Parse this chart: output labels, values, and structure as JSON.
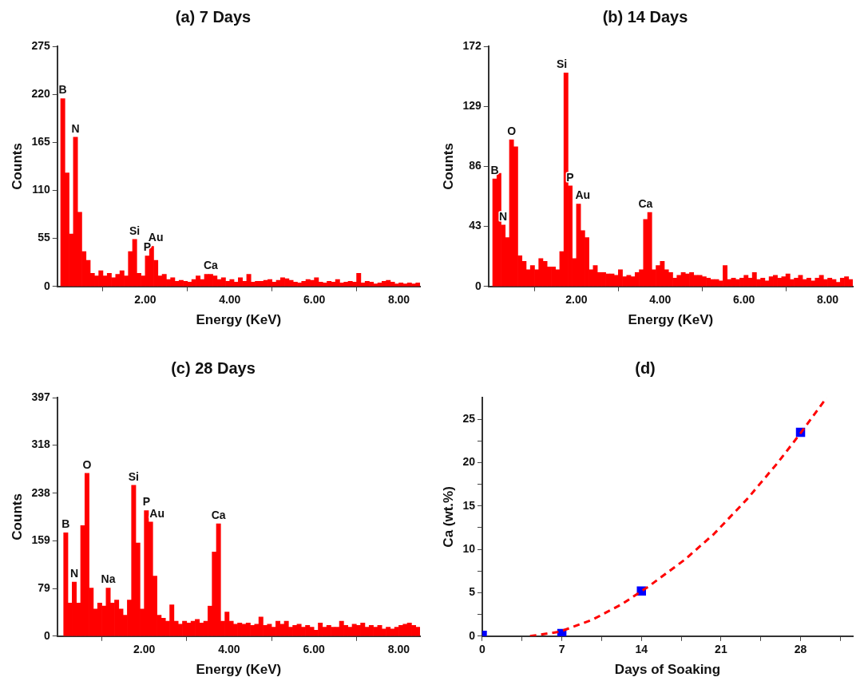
{
  "chart_data": [
    {
      "type": "bar",
      "title": "(a) 7 Days",
      "xlabel": "Energy (KeV)",
      "ylabel": "Counts",
      "color": "#ff0000",
      "grid": false,
      "legend": false,
      "x": [
        0.05,
        0.15,
        0.25,
        0.35,
        0.45,
        0.55,
        0.65,
        0.75,
        0.85,
        0.95,
        1.05,
        1.15,
        1.25,
        1.35,
        1.45,
        1.55,
        1.65,
        1.75,
        1.85,
        1.95,
        2.05,
        2.15,
        2.25,
        2.35,
        2.45,
        2.55,
        2.65,
        2.75,
        2.85,
        2.95,
        3.05,
        3.15,
        3.25,
        3.35,
        3.45,
        3.55,
        3.65,
        3.75,
        3.85,
        3.95,
        4.05,
        4.15,
        4.25,
        4.35,
        4.45,
        4.55,
        4.65,
        4.75,
        4.85,
        4.95,
        5.05,
        5.15,
        5.25,
        5.35,
        5.45,
        5.55,
        5.65,
        5.75,
        5.85,
        5.95,
        6.05,
        6.15,
        6.25,
        6.35,
        6.45,
        6.55,
        6.65,
        6.75,
        6.85,
        6.95,
        7.05,
        7.15,
        7.25,
        7.35,
        7.45,
        7.55,
        7.65,
        7.75,
        7.85,
        7.95,
        8.05,
        8.15,
        8.25,
        8.35,
        8.45
      ],
      "values": [
        215,
        130,
        60,
        171,
        85,
        40,
        30,
        15,
        12,
        18,
        12,
        15,
        10,
        14,
        18,
        12,
        40,
        54,
        15,
        12,
        35,
        46,
        30,
        12,
        14,
        8,
        10,
        6,
        7,
        6,
        5,
        8,
        12,
        8,
        14,
        14,
        12,
        8,
        10,
        6,
        8,
        5,
        10,
        6,
        14,
        5,
        6,
        6,
        7,
        8,
        5,
        7,
        10,
        9,
        7,
        5,
        4,
        6,
        8,
        7,
        10,
        5,
        4,
        6,
        5,
        8,
        4,
        5,
        6,
        5,
        15,
        4,
        6,
        5,
        3,
        4,
        6,
        7,
        5,
        3,
        4,
        3,
        4,
        3,
        4
      ],
      "xlim": [
        -0.08,
        8.5
      ],
      "xticks": [
        {
          "value": 2,
          "label": "2.00"
        },
        {
          "value": 4,
          "label": "4.00"
        },
        {
          "value": 6,
          "label": "6.00"
        },
        {
          "value": 8,
          "label": "8.00"
        }
      ],
      "ylim": [
        0,
        275
      ],
      "yticks": [
        0,
        55,
        110,
        165,
        220,
        275
      ],
      "annotations": [
        {
          "text": "B",
          "x": 0.05,
          "y": 215
        },
        {
          "text": "N",
          "x": 0.35,
          "y": 171
        },
        {
          "text": "Si",
          "x": 1.75,
          "y": 54
        },
        {
          "text": "P",
          "x": 2.05,
          "y": 35
        },
        {
          "text": "Au",
          "x": 2.25,
          "y": 46
        },
        {
          "text": "Ca",
          "x": 3.55,
          "y": 14
        }
      ]
    },
    {
      "type": "bar",
      "title": "(b) 14 Days",
      "xlabel": "Energy (KeV)",
      "ylabel": "Counts",
      "color": "#ff0000",
      "grid": false,
      "legend": false,
      "x": [
        0.05,
        0.15,
        0.25,
        0.35,
        0.45,
        0.55,
        0.65,
        0.75,
        0.85,
        0.95,
        1.05,
        1.15,
        1.25,
        1.35,
        1.45,
        1.55,
        1.65,
        1.75,
        1.85,
        1.95,
        2.05,
        2.15,
        2.25,
        2.35,
        2.45,
        2.55,
        2.65,
        2.75,
        2.85,
        2.95,
        3.05,
        3.15,
        3.25,
        3.35,
        3.45,
        3.55,
        3.65,
        3.75,
        3.85,
        3.95,
        4.05,
        4.15,
        4.25,
        4.35,
        4.45,
        4.55,
        4.65,
        4.75,
        4.85,
        4.95,
        5.05,
        5.15,
        5.25,
        5.35,
        5.45,
        5.55,
        5.65,
        5.75,
        5.85,
        5.95,
        6.05,
        6.15,
        6.25,
        6.35,
        6.45,
        6.55,
        6.65,
        6.75,
        6.85,
        6.95,
        7.05,
        7.15,
        7.25,
        7.35,
        7.45,
        7.55,
        7.65,
        7.75,
        7.85,
        7.95,
        8.05,
        8.15,
        8.25,
        8.35,
        8.45,
        8.55
      ],
      "values": [
        77,
        81,
        44,
        35,
        105,
        100,
        22,
        18,
        12,
        15,
        12,
        20,
        18,
        14,
        14,
        12,
        25,
        153,
        72,
        20,
        59,
        40,
        35,
        12,
        15,
        10,
        10,
        9,
        9,
        8,
        12,
        7,
        8,
        7,
        10,
        12,
        48,
        53,
        12,
        15,
        18,
        12,
        10,
        6,
        8,
        10,
        9,
        10,
        8,
        8,
        7,
        6,
        5,
        5,
        4,
        15,
        5,
        6,
        5,
        6,
        8,
        6,
        10,
        5,
        6,
        4,
        7,
        8,
        6,
        7,
        9,
        5,
        6,
        8,
        5,
        6,
        4,
        6,
        8,
        5,
        6,
        5,
        3,
        6,
        7,
        5
      ],
      "xlim": [
        -0.1,
        8.6
      ],
      "xticks": [
        {
          "value": 2,
          "label": "2.00"
        },
        {
          "value": 4,
          "label": "4.00"
        },
        {
          "value": 6,
          "label": "6.00"
        },
        {
          "value": 8,
          "label": "8.00"
        }
      ],
      "ylim": [
        0,
        172
      ],
      "yticks": [
        0,
        43,
        86,
        129,
        172
      ],
      "annotations": [
        {
          "text": "B",
          "x": 0.05,
          "y": 77
        },
        {
          "text": "N",
          "x": 0.25,
          "y": 44
        },
        {
          "text": "O",
          "x": 0.45,
          "y": 105
        },
        {
          "text": "Si",
          "x": 1.65,
          "y": 153
        },
        {
          "text": "P",
          "x": 1.85,
          "y": 72
        },
        {
          "text": "Au",
          "x": 2.15,
          "y": 59
        },
        {
          "text": "Ca",
          "x": 3.65,
          "y": 53
        }
      ]
    },
    {
      "type": "bar",
      "title": "(c) 28 Days",
      "xlabel": "Energy (KeV)",
      "ylabel": "Counts",
      "color": "#ff0000",
      "grid": false,
      "legend": false,
      "x": [
        0.15,
        0.25,
        0.35,
        0.45,
        0.55,
        0.65,
        0.75,
        0.85,
        0.95,
        1.05,
        1.15,
        1.25,
        1.35,
        1.45,
        1.55,
        1.65,
        1.75,
        1.85,
        1.95,
        2.05,
        2.15,
        2.25,
        2.35,
        2.45,
        2.55,
        2.65,
        2.75,
        2.85,
        2.95,
        3.05,
        3.15,
        3.25,
        3.35,
        3.45,
        3.55,
        3.65,
        3.75,
        3.85,
        3.95,
        4.05,
        4.15,
        4.25,
        4.35,
        4.45,
        4.55,
        4.65,
        4.75,
        4.85,
        4.95,
        5.05,
        5.15,
        5.25,
        5.35,
        5.45,
        5.55,
        5.65,
        5.75,
        5.85,
        5.95,
        6.05,
        6.15,
        6.25,
        6.35,
        6.45,
        6.55,
        6.65,
        6.75,
        6.85,
        6.95,
        7.05,
        7.15,
        7.25,
        7.35,
        7.45,
        7.55,
        7.65,
        7.75,
        7.85,
        7.95,
        8.05,
        8.15,
        8.25,
        8.35,
        8.45
      ],
      "values": [
        172,
        55,
        90,
        55,
        184,
        271,
        80,
        45,
        55,
        50,
        80,
        55,
        60,
        45,
        35,
        60,
        251,
        155,
        45,
        209,
        190,
        100,
        35,
        30,
        25,
        52,
        25,
        20,
        25,
        22,
        25,
        28,
        22,
        25,
        50,
        140,
        187,
        25,
        40,
        25,
        20,
        22,
        20,
        22,
        18,
        20,
        32,
        18,
        20,
        15,
        25,
        20,
        25,
        15,
        18,
        20,
        15,
        18,
        15,
        10,
        22,
        15,
        18,
        15,
        15,
        25,
        18,
        15,
        20,
        18,
        22,
        15,
        18,
        15,
        18,
        12,
        15,
        12,
        15,
        18,
        20,
        22,
        18,
        15
      ],
      "xlim": [
        -0.05,
        8.5
      ],
      "xticks": [
        {
          "value": 2,
          "label": "2.00"
        },
        {
          "value": 4,
          "label": "4.00"
        },
        {
          "value": 6,
          "label": "6.00"
        },
        {
          "value": 8,
          "label": "8.00"
        }
      ],
      "ylim": [
        0,
        397
      ],
      "yticks": [
        0,
        79,
        159,
        238,
        318,
        397
      ],
      "annotations": [
        {
          "text": "B",
          "x": 0.15,
          "y": 172
        },
        {
          "text": "N",
          "x": 0.35,
          "y": 90
        },
        {
          "text": "O",
          "x": 0.65,
          "y": 271
        },
        {
          "text": "Na",
          "x": 1.15,
          "y": 80
        },
        {
          "text": "Si",
          "x": 1.75,
          "y": 251
        },
        {
          "text": "P",
          "x": 2.05,
          "y": 209
        },
        {
          "text": "Au",
          "x": 2.3,
          "y": 190
        },
        {
          "text": "Ca",
          "x": 3.75,
          "y": 187
        }
      ]
    },
    {
      "type": "scatter",
      "title": "(d)",
      "xlabel": "Days of Soaking",
      "ylabel": "Ca (wt.%)",
      "grid": false,
      "legend": false,
      "xlim": [
        0,
        32.6
      ],
      "xticks": [
        0,
        {
          "value": 3.5,
          "label": null
        },
        7,
        {
          "value": 10.5,
          "label": null
        },
        14,
        {
          "value": 17.5,
          "label": null
        },
        21,
        {
          "value": 24.5,
          "label": null
        },
        28,
        {
          "value": 31.5,
          "label": null
        }
      ],
      "ylim": [
        0,
        27.5
      ],
      "yticks": [
        0,
        {
          "value": 2.5,
          "label": null
        },
        5,
        {
          "value": 7.5,
          "label": null
        },
        10,
        {
          "value": 12.5,
          "label": null
        },
        15,
        {
          "value": 17.5,
          "label": null
        },
        20,
        {
          "value": 22.5,
          "label": null
        },
        25
      ],
      "series": [
        {
          "type": "line",
          "color": "#ff0000",
          "line_style": "dashed",
          "marker": "none",
          "x": [
            4.2,
            6.8,
            9.7,
            12.3,
            14.6,
            17.8,
            20.4,
            23.3,
            26,
            28,
            30.3
          ],
          "values": [
            0,
            0.5,
            1.9,
            3.7,
            5.7,
            8.8,
            11.8,
            15.8,
            20,
            23.4,
            27.5
          ]
        },
        {
          "type": "scatter",
          "color": "#0000ff",
          "marker": "square",
          "x": [
            0,
            7,
            14,
            28
          ],
          "values": [
            0.1,
            0.3,
            5.2,
            23.5
          ]
        }
      ]
    }
  ]
}
